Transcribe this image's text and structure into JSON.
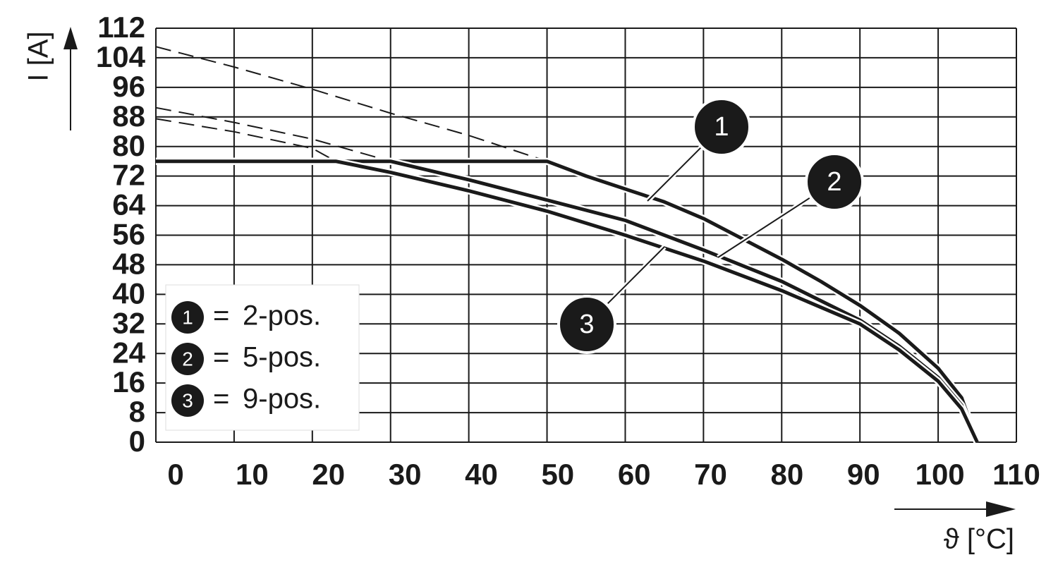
{
  "chart_data": {
    "type": "line",
    "y_label": "I [A]",
    "x_label": "ϑ [°C]",
    "xlim": [
      0,
      110
    ],
    "xticks": [
      0,
      10,
      20,
      30,
      40,
      50,
      60,
      70,
      80,
      90,
      100,
      110
    ],
    "ylim": [
      0,
      112
    ],
    "yticks": [
      0,
      8,
      16,
      24,
      32,
      40,
      48,
      56,
      64,
      72,
      80,
      88,
      96,
      104,
      112
    ],
    "grid": true,
    "legend_position": "lower left",
    "legend_separator": "=",
    "series": [
      {
        "name": "2-pos.",
        "label": "1",
        "color": "#1a1a1a",
        "x": [
          0,
          50,
          55,
          60,
          65,
          70,
          75,
          80,
          85,
          90,
          95,
          100,
          103,
          105
        ],
        "values": [
          76,
          76,
          72,
          68.5,
          65,
          60.5,
          55,
          49.5,
          43.5,
          37,
          29.5,
          20,
          12,
          0
        ],
        "dashed_x": [
          0,
          10,
          20,
          30,
          40,
          50
        ],
        "dashed_values": [
          107,
          101.5,
          95.5,
          89,
          83,
          76
        ]
      },
      {
        "name": "5-pos.",
        "label": "2",
        "color": "#1a1a1a",
        "x": [
          0,
          30,
          40,
          50,
          60,
          70,
          80,
          90,
          95,
          100,
          103,
          105
        ],
        "values": [
          76,
          76,
          71,
          65.5,
          60,
          52,
          43.5,
          33,
          26,
          17.5,
          10,
          0
        ],
        "dashed_x": [
          0,
          10,
          20,
          30
        ],
        "dashed_values": [
          90.5,
          86.5,
          82,
          76
        ]
      },
      {
        "name": "9-pos.",
        "label": "3",
        "color": "#1a1a1a",
        "x": [
          0,
          23,
          30,
          40,
          50,
          60,
          70,
          80,
          90,
          95,
          100,
          103,
          105
        ],
        "values": [
          76,
          76,
          73,
          68,
          62.5,
          56,
          49,
          41,
          32,
          25,
          16.5,
          9,
          0
        ],
        "dashed_x": [
          0,
          10,
          20,
          23
        ],
        "dashed_values": [
          87.5,
          84,
          79.5,
          76
        ]
      }
    ]
  }
}
